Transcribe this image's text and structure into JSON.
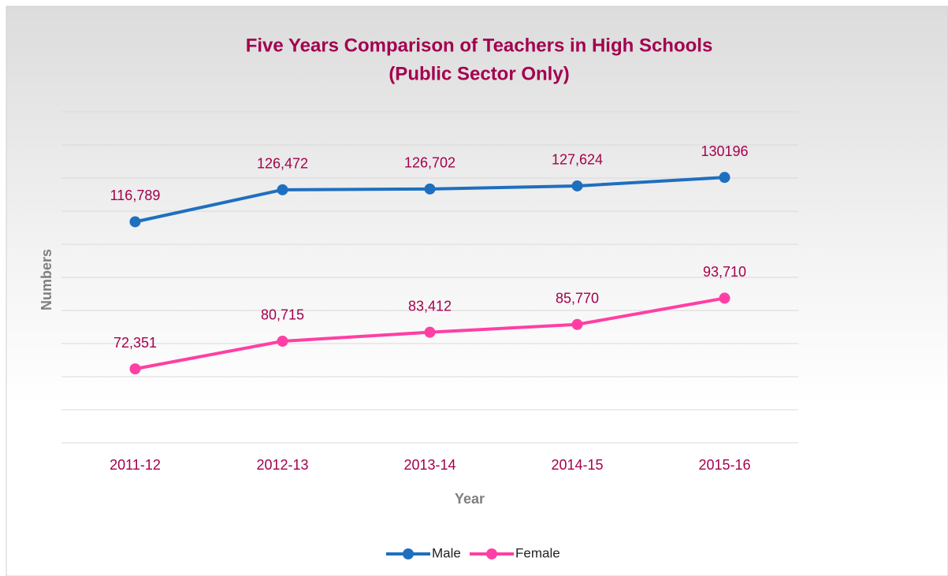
{
  "chart_data": {
    "type": "line",
    "title": "Five Years Comparison of Teachers in High Schools",
    "subtitle": "(Public Sector Only)",
    "x_label": "Year",
    "y_label": "Numbers",
    "categories": [
      "2011-12",
      "2012-13",
      "2013-14",
      "2014-15",
      "2015-16"
    ],
    "series": [
      {
        "name": "Male",
        "color": "#1f6fbf",
        "values": [
          116789,
          126472,
          126702,
          127624,
          130196
        ],
        "value_labels": [
          "116,789",
          "126,472",
          "126,702",
          "127,624",
          "130196"
        ]
      },
      {
        "name": "Female",
        "color": "#ff3fa4",
        "values": [
          72351,
          80715,
          83412,
          85770,
          93710
        ],
        "value_labels": [
          "72,351",
          "80,715",
          "83,412",
          "85,770",
          "93,710"
        ]
      }
    ],
    "ylim": [
      50000,
      150000
    ],
    "yticks": [
      50000,
      60000,
      70000,
      80000,
      90000,
      100000,
      110000,
      120000,
      130000,
      140000,
      150000
    ],
    "grid": true,
    "legend": "bottom"
  }
}
